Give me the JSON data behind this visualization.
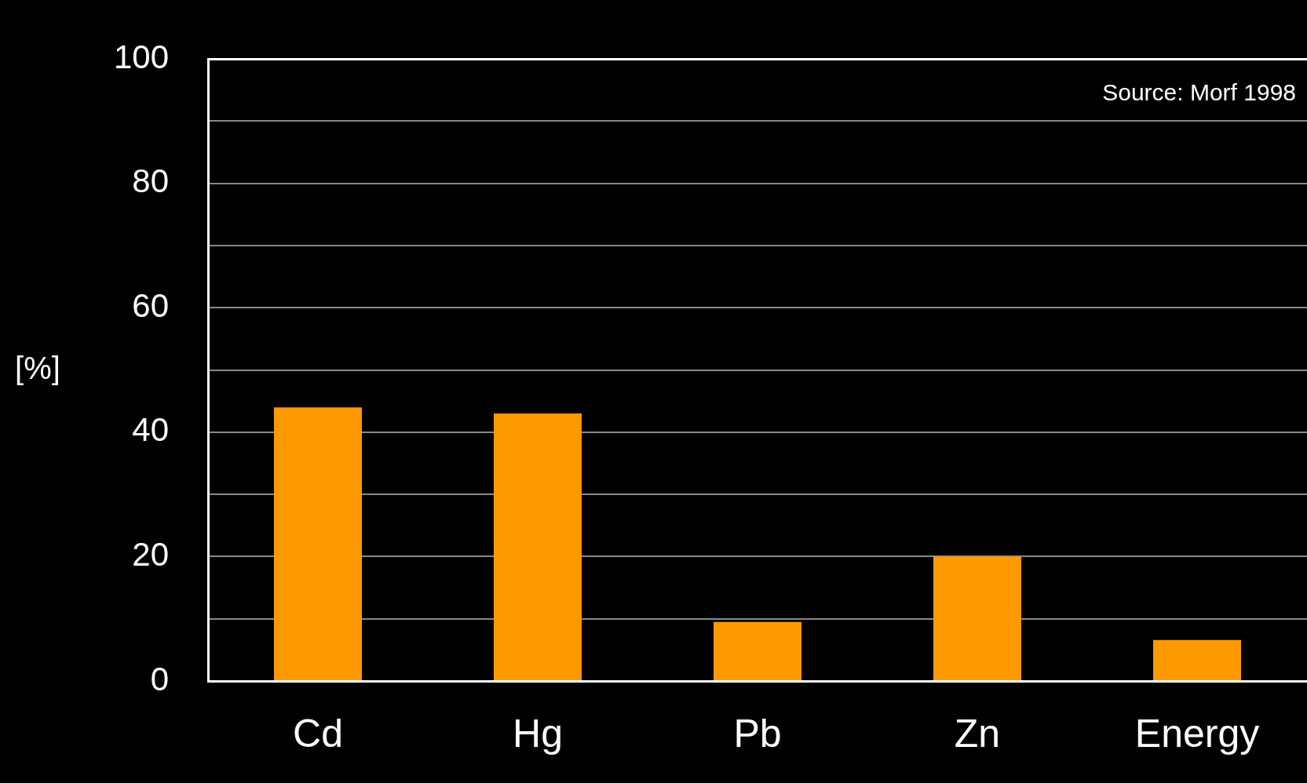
{
  "chart_data": {
    "type": "bar",
    "categories": [
      "Cd",
      "Hg",
      "Pb",
      "Zn",
      "Energy"
    ],
    "values": [
      44,
      43,
      9.5,
      20,
      6.6
    ],
    "color": "#ff9900",
    "ylabel": "[%]",
    "annotations": [
      "Source: Morf 1998"
    ],
    "ylim": [
      0,
      100
    ],
    "yticks": [
      0,
      {
        "value": 10,
        "label": null
      },
      20,
      {
        "value": 30,
        "label": null
      },
      40,
      {
        "value": 50,
        "label": null
      },
      60,
      {
        "value": 70,
        "label": null
      },
      80,
      {
        "value": 90,
        "label": null
      },
      100
    ],
    "grid": "y"
  }
}
